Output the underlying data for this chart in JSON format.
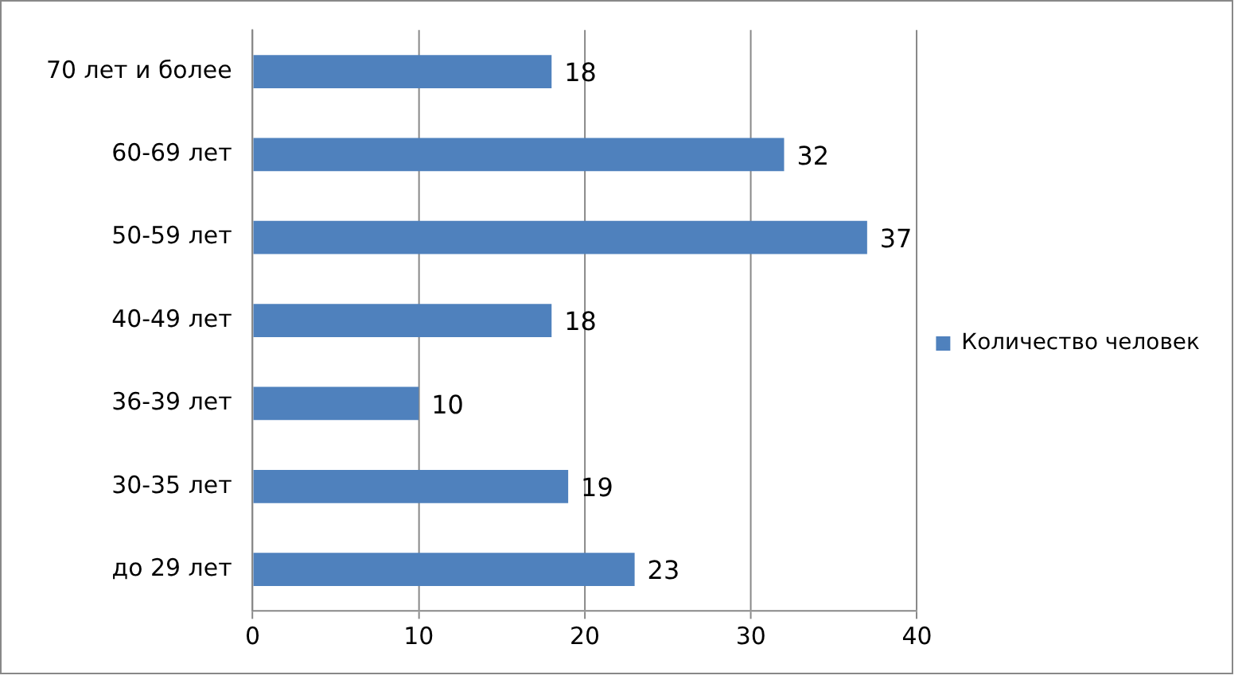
{
  "chart_data": {
    "type": "bar",
    "orientation": "horizontal",
    "categories": [
      "70 лет и более",
      "60-69 лет",
      "50-59 лет",
      "40-49 лет",
      "36-39 лет",
      "30-35 лет",
      "до 29 лет"
    ],
    "series": [
      {
        "name": "Количество человек",
        "color": "#4f81bd",
        "values": [
          18,
          32,
          37,
          18,
          10,
          19,
          23
        ]
      }
    ],
    "xlim": [
      0,
      40
    ],
    "xticks": [
      0,
      10,
      20,
      30,
      40
    ],
    "grid": "x",
    "legend": "right",
    "data_labels": true
  }
}
